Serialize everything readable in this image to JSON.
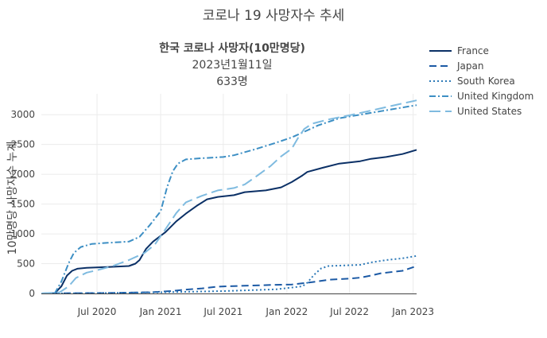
{
  "chart_data": {
    "type": "line",
    "title": "코로나 19 사망자수 추세",
    "annotation": {
      "line1": "한국 코로나 사망자(10만명당)",
      "line2": "2023년1월11일",
      "line3": "633명"
    },
    "xlabel": "",
    "ylabel": "10만명당 사망자수 누계",
    "x_range": [
      "2020-01-22",
      "2023-01-11"
    ],
    "ylim": [
      0,
      3350
    ],
    "x_ticks": [
      {
        "date": "2020-07-01",
        "label": "Jul 2020"
      },
      {
        "date": "2021-01-01",
        "label": "Jan 2021"
      },
      {
        "date": "2021-07-01",
        "label": "Jul 2021"
      },
      {
        "date": "2022-01-01",
        "label": "Jan 2022"
      },
      {
        "date": "2022-07-01",
        "label": "Jul 2022"
      },
      {
        "date": "2023-01-01",
        "label": "Jan 2023"
      }
    ],
    "y_ticks": [
      0,
      500,
      1000,
      1500,
      2000,
      2500,
      3000
    ],
    "grid": true,
    "legend_position": "right",
    "series": [
      {
        "name": "France",
        "color": "#0b3066",
        "dash": "solid",
        "points": [
          [
            "2020-01-22",
            0
          ],
          [
            "2020-03-01",
            5
          ],
          [
            "2020-03-20",
            120
          ],
          [
            "2020-04-05",
            300
          ],
          [
            "2020-04-20",
            380
          ],
          [
            "2020-05-05",
            415
          ],
          [
            "2020-06-01",
            430
          ],
          [
            "2020-08-01",
            445
          ],
          [
            "2020-10-01",
            460
          ],
          [
            "2020-10-20",
            500
          ],
          [
            "2020-11-01",
            560
          ],
          [
            "2020-11-20",
            750
          ],
          [
            "2020-12-10",
            870
          ],
          [
            "2021-01-15",
            1030
          ],
          [
            "2021-02-15",
            1210
          ],
          [
            "2021-03-15",
            1340
          ],
          [
            "2021-04-15",
            1470
          ],
          [
            "2021-05-15",
            1580
          ],
          [
            "2021-06-15",
            1620
          ],
          [
            "2021-08-01",
            1650
          ],
          [
            "2021-09-01",
            1700
          ],
          [
            "2021-11-01",
            1730
          ],
          [
            "2021-12-15",
            1780
          ],
          [
            "2022-01-15",
            1870
          ],
          [
            "2022-02-15",
            1980
          ],
          [
            "2022-03-01",
            2040
          ],
          [
            "2022-04-15",
            2110
          ],
          [
            "2022-06-01",
            2180
          ],
          [
            "2022-08-01",
            2220
          ],
          [
            "2022-09-01",
            2260
          ],
          [
            "2022-10-15",
            2290
          ],
          [
            "2022-12-01",
            2340
          ],
          [
            "2023-01-11",
            2410
          ]
        ]
      },
      {
        "name": "Japan",
        "color": "#1c5aa5",
        "dash": "long",
        "points": [
          [
            "2020-01-22",
            0
          ],
          [
            "2020-05-01",
            5
          ],
          [
            "2020-08-01",
            8
          ],
          [
            "2020-12-01",
            20
          ],
          [
            "2021-02-01",
            40
          ],
          [
            "2021-03-15",
            65
          ],
          [
            "2021-05-01",
            85
          ],
          [
            "2021-06-15",
            115
          ],
          [
            "2021-09-01",
            130
          ],
          [
            "2021-12-01",
            145
          ],
          [
            "2022-01-15",
            150
          ],
          [
            "2022-03-15",
            190
          ],
          [
            "2022-05-01",
            230
          ],
          [
            "2022-07-01",
            250
          ],
          [
            "2022-08-01",
            265
          ],
          [
            "2022-09-01",
            300
          ],
          [
            "2022-10-01",
            340
          ],
          [
            "2022-12-01",
            380
          ],
          [
            "2023-01-11",
            460
          ]
        ]
      },
      {
        "name": "South Korea",
        "color": "#2e7ab8",
        "dash": "dot",
        "points": [
          [
            "2020-01-22",
            0
          ],
          [
            "2020-07-01",
            5
          ],
          [
            "2021-01-01",
            20
          ],
          [
            "2021-07-01",
            40
          ],
          [
            "2021-12-01",
            70
          ],
          [
            "2022-02-15",
            120
          ],
          [
            "2022-03-01",
            180
          ],
          [
            "2022-03-20",
            310
          ],
          [
            "2022-04-10",
            420
          ],
          [
            "2022-05-01",
            460
          ],
          [
            "2022-06-15",
            470
          ],
          [
            "2022-08-01",
            480
          ],
          [
            "2022-09-01",
            520
          ],
          [
            "2022-10-15",
            560
          ],
          [
            "2022-12-01",
            590
          ],
          [
            "2023-01-11",
            630
          ]
        ]
      },
      {
        "name": "United Kingdom",
        "color": "#3d8fc4",
        "dash": "dashdot",
        "points": [
          [
            "2020-01-22",
            0
          ],
          [
            "2020-03-01",
            5
          ],
          [
            "2020-03-20",
            200
          ],
          [
            "2020-04-10",
            510
          ],
          [
            "2020-04-25",
            680
          ],
          [
            "2020-05-15",
            780
          ],
          [
            "2020-06-15",
            830
          ],
          [
            "2020-08-01",
            850
          ],
          [
            "2020-10-01",
            870
          ],
          [
            "2020-11-01",
            950
          ],
          [
            "2020-12-01",
            1150
          ],
          [
            "2021-01-01",
            1380
          ],
          [
            "2021-01-20",
            1790
          ],
          [
            "2021-02-05",
            2050
          ],
          [
            "2021-02-20",
            2180
          ],
          [
            "2021-03-15",
            2250
          ],
          [
            "2021-05-01",
            2270
          ],
          [
            "2021-07-01",
            2290
          ],
          [
            "2021-08-01",
            2320
          ],
          [
            "2021-10-01",
            2420
          ],
          [
            "2021-12-01",
            2530
          ],
          [
            "2022-01-15",
            2620
          ],
          [
            "2022-02-15",
            2700
          ],
          [
            "2022-04-01",
            2820
          ],
          [
            "2022-06-01",
            2940
          ],
          [
            "2022-08-01",
            3000
          ],
          [
            "2022-10-01",
            3060
          ],
          [
            "2022-12-01",
            3120
          ],
          [
            "2023-01-11",
            3160
          ]
        ]
      },
      {
        "name": "United States",
        "color": "#7fbbe0",
        "dash": "longdash",
        "points": [
          [
            "2020-01-22",
            0
          ],
          [
            "2020-03-15",
            20
          ],
          [
            "2020-04-10",
            120
          ],
          [
            "2020-05-01",
            260
          ],
          [
            "2020-06-01",
            350
          ],
          [
            "2020-07-01",
            390
          ],
          [
            "2020-08-15",
            460
          ],
          [
            "2020-10-01",
            560
          ],
          [
            "2020-11-15",
            680
          ],
          [
            "2020-12-15",
            820
          ],
          [
            "2021-01-15",
            1080
          ],
          [
            "2021-02-15",
            1350
          ],
          [
            "2021-03-15",
            1530
          ],
          [
            "2021-05-01",
            1640
          ],
          [
            "2021-06-15",
            1730
          ],
          [
            "2021-08-01",
            1770
          ],
          [
            "2021-09-01",
            1830
          ],
          [
            "2021-10-01",
            1950
          ],
          [
            "2021-11-15",
            2140
          ],
          [
            "2021-12-15",
            2300
          ],
          [
            "2022-01-15",
            2430
          ],
          [
            "2022-02-01",
            2600
          ],
          [
            "2022-02-20",
            2760
          ],
          [
            "2022-03-15",
            2850
          ],
          [
            "2022-05-01",
            2920
          ],
          [
            "2022-07-01",
            2990
          ],
          [
            "2022-09-01",
            3070
          ],
          [
            "2022-11-01",
            3150
          ],
          [
            "2023-01-11",
            3240
          ]
        ]
      }
    ]
  }
}
